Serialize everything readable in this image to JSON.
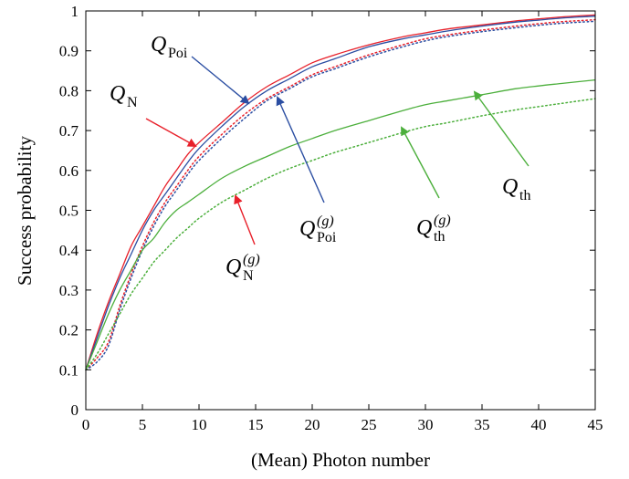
{
  "chart_data": {
    "type": "line",
    "title": "",
    "xlabel": "(Mean) Photon number",
    "ylabel": "Success probability",
    "xlim": [
      0,
      45
    ],
    "ylim": [
      0,
      1
    ],
    "xticks": [
      "0",
      "5",
      "10",
      "15",
      "20",
      "25",
      "30",
      "35",
      "40",
      "45"
    ],
    "yticks": [
      "0",
      "0.1",
      "0.2",
      "0.3",
      "0.4",
      "0.5",
      "0.6",
      "0.7",
      "0.8",
      "0.9",
      "1"
    ],
    "grid": false,
    "legend": "none (curves labeled with arrow annotations)",
    "x": [
      0,
      1,
      2,
      3,
      4,
      5,
      6,
      7,
      8,
      9,
      10,
      12,
      14,
      16,
      18,
      20,
      22,
      25,
      28,
      30,
      32,
      35,
      38,
      40,
      42,
      45
    ],
    "series": [
      {
        "name": "Q_N",
        "color": "#e8202a",
        "style": "solid",
        "values": [
          0.1,
          0.19,
          0.27,
          0.34,
          0.41,
          0.46,
          0.51,
          0.56,
          0.6,
          0.64,
          0.67,
          0.72,
          0.77,
          0.81,
          0.84,
          0.87,
          0.89,
          0.915,
          0.935,
          0.945,
          0.955,
          0.965,
          0.975,
          0.98,
          0.985,
          0.99
        ]
      },
      {
        "name": "Q_Poi",
        "color": "#2b4ea2",
        "style": "solid",
        "values": [
          0.1,
          0.18,
          0.26,
          0.33,
          0.39,
          0.45,
          0.5,
          0.54,
          0.58,
          0.62,
          0.655,
          0.71,
          0.76,
          0.8,
          0.83,
          0.86,
          0.88,
          0.91,
          0.93,
          0.94,
          0.95,
          0.962,
          0.972,
          0.977,
          0.982,
          0.987
        ]
      },
      {
        "name": "Q_N^(g)",
        "color": "#e8202a",
        "style": "dotted",
        "values": [
          0.1,
          0.13,
          0.17,
          0.26,
          0.34,
          0.41,
          0.47,
          0.52,
          0.56,
          0.6,
          0.635,
          0.69,
          0.74,
          0.78,
          0.81,
          0.84,
          0.86,
          0.89,
          0.915,
          0.93,
          0.94,
          0.952,
          0.962,
          0.968,
          0.973,
          0.978
        ]
      },
      {
        "name": "Q_Poi^(g)",
        "color": "#2b4ea2",
        "style": "dotted",
        "values": [
          0.1,
          0.12,
          0.16,
          0.25,
          0.33,
          0.4,
          0.46,
          0.51,
          0.55,
          0.59,
          0.625,
          0.68,
          0.73,
          0.775,
          0.805,
          0.835,
          0.855,
          0.885,
          0.91,
          0.925,
          0.936,
          0.948,
          0.958,
          0.964,
          0.969,
          0.974
        ]
      },
      {
        "name": "Q_th",
        "color": "#4caf3c",
        "style": "solid",
        "values": [
          0.1,
          0.17,
          0.24,
          0.3,
          0.35,
          0.4,
          0.43,
          0.47,
          0.5,
          0.52,
          0.54,
          0.58,
          0.61,
          0.635,
          0.66,
          0.68,
          0.7,
          0.725,
          0.75,
          0.765,
          0.775,
          0.79,
          0.805,
          0.812,
          0.818,
          0.827
        ]
      },
      {
        "name": "Q_th^(g)",
        "color": "#4caf3c",
        "style": "dotted",
        "values": [
          0.1,
          0.14,
          0.19,
          0.24,
          0.29,
          0.33,
          0.37,
          0.4,
          0.43,
          0.455,
          0.48,
          0.52,
          0.55,
          0.58,
          0.605,
          0.625,
          0.645,
          0.67,
          0.695,
          0.71,
          0.72,
          0.737,
          0.752,
          0.76,
          0.768,
          0.78
        ]
      }
    ],
    "annotations": [
      {
        "main": "Q",
        "sub": "N",
        "sup": "",
        "color": "#e8202a"
      },
      {
        "main": "Q",
        "sub": "Poi",
        "sup": "",
        "color": "#2b4ea2"
      },
      {
        "main": "Q",
        "sub": "N",
        "sup": "(g)",
        "color": "#e8202a"
      },
      {
        "main": "Q",
        "sub": "Poi",
        "sup": "(g)",
        "color": "#2b4ea2"
      },
      {
        "main": "Q",
        "sub": "th",
        "sup": "(g)",
        "color": "#4caf3c"
      },
      {
        "main": "Q",
        "sub": "th",
        "sup": "",
        "color": "#4caf3c"
      }
    ]
  }
}
